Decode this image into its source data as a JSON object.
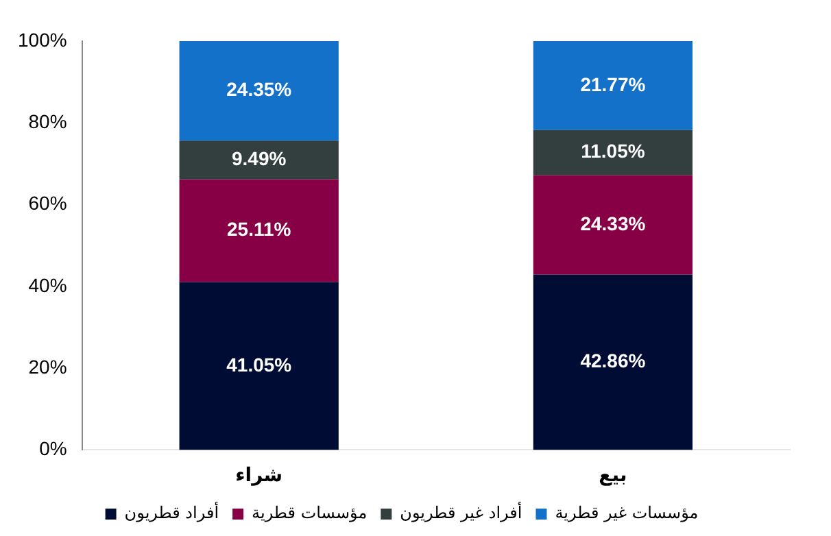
{
  "chart_data": {
    "type": "bar",
    "stacked": true,
    "categories": [
      "شراء",
      "بيع"
    ],
    "series": [
      {
        "name": "أفراد قطريون",
        "color": "#000c33",
        "values": [
          41.05,
          42.86
        ],
        "value_labels": [
          "41.05%",
          "42.86%"
        ]
      },
      {
        "name": "مؤسسات قطرية",
        "color": "#870046",
        "values": [
          25.11,
          24.33
        ],
        "value_labels": [
          "25.11%",
          "24.33%"
        ]
      },
      {
        "name": "أفراد غير قطريون",
        "color": "#333f3f",
        "values": [
          9.49,
          11.05
        ],
        "value_labels": [
          "9.49%",
          "11.05%"
        ]
      },
      {
        "name": "مؤسسات غير قطرية",
        "color": "#1471ca",
        "values": [
          24.35,
          21.77
        ],
        "value_labels": [
          "24.35%",
          "21.77%"
        ]
      }
    ],
    "ylim": [
      0,
      100
    ],
    "yticks": [
      {
        "value": 0,
        "label": "0%"
      },
      {
        "value": 20,
        "label": "20%"
      },
      {
        "value": 40,
        "label": "40%"
      },
      {
        "value": 60,
        "label": "60%"
      },
      {
        "value": 80,
        "label": "80%"
      },
      {
        "value": 100,
        "label": "100%"
      }
    ],
    "legend": "bottom",
    "grid": false
  }
}
